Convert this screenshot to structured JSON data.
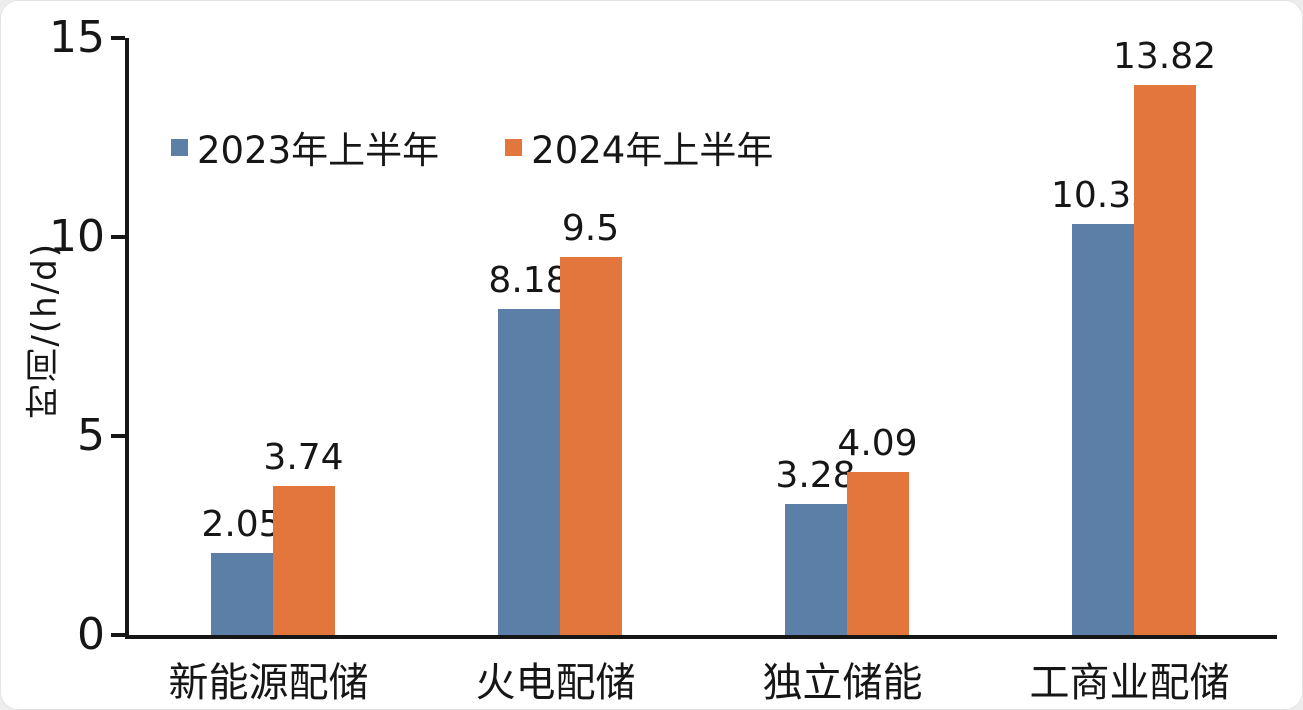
{
  "chart_data": {
    "type": "bar",
    "title": "",
    "ylabel": "时间/(h/d)",
    "xlabel": "",
    "ylim": [
      0,
      15
    ],
    "yticks": [
      0,
      5,
      10,
      15
    ],
    "grid": false,
    "legend_position": "top-left-inside",
    "categories": [
      "新能源配储",
      "火电配储",
      "独立储能",
      "工商业配储"
    ],
    "series": [
      {
        "name": "2023年上半年",
        "color": "#5b7fa6",
        "values": [
          2.05,
          8.18,
          3.28,
          10.33
        ]
      },
      {
        "name": "2024年上半年",
        "color": "#e2763c",
        "values": [
          3.74,
          9.5,
          4.09,
          13.82
        ]
      }
    ]
  },
  "colors": {
    "axis": "#161616",
    "text": "#161616",
    "background": "#ffffff"
  }
}
